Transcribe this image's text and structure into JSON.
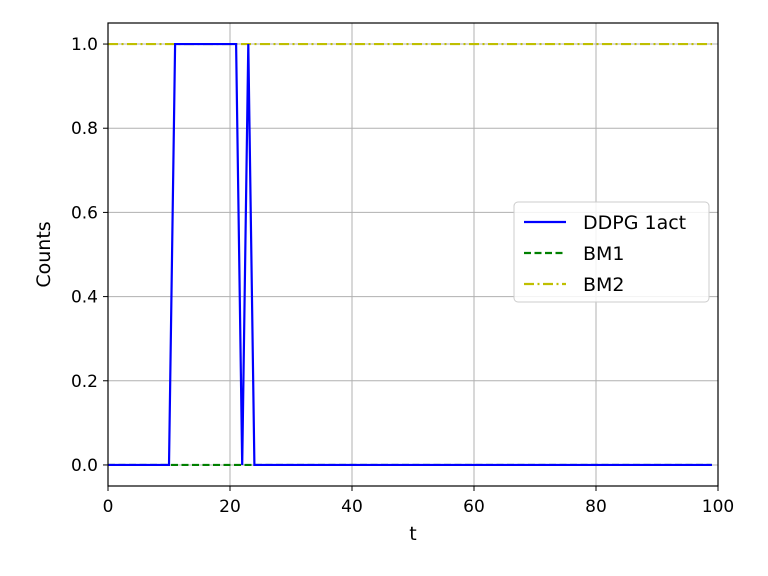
{
  "chart_data": {
    "type": "line",
    "xlabel": "t",
    "ylabel": "Counts",
    "xlim": [
      0,
      100
    ],
    "ylim": [
      -0.05,
      1.05
    ],
    "xticks": [
      0,
      20,
      40,
      60,
      80,
      100
    ],
    "yticks": [
      0.0,
      0.2,
      0.4,
      0.6,
      0.8,
      1.0
    ],
    "xtick_labels": [
      "0",
      "20",
      "40",
      "60",
      "80",
      "100"
    ],
    "ytick_labels": [
      "0.0",
      "0.2",
      "0.4",
      "0.6",
      "0.8",
      "1.0"
    ],
    "grid": true,
    "legend_position": "center-right",
    "series": [
      {
        "name": "DDPG 1act",
        "color": "#0000ff",
        "style": "solid",
        "x": [
          0,
          10,
          11,
          21,
          22,
          23,
          24,
          99
        ],
        "y": [
          0,
          0,
          1,
          1,
          0,
          1,
          0,
          0
        ]
      },
      {
        "name": "BM1",
        "color": "#008000",
        "style": "dashed",
        "x": [
          0,
          99
        ],
        "y": [
          0,
          0
        ]
      },
      {
        "name": "BM2",
        "color": "#bfbf00",
        "style": "dashdot",
        "x": [
          0,
          99
        ],
        "y": [
          1,
          1
        ]
      }
    ]
  }
}
